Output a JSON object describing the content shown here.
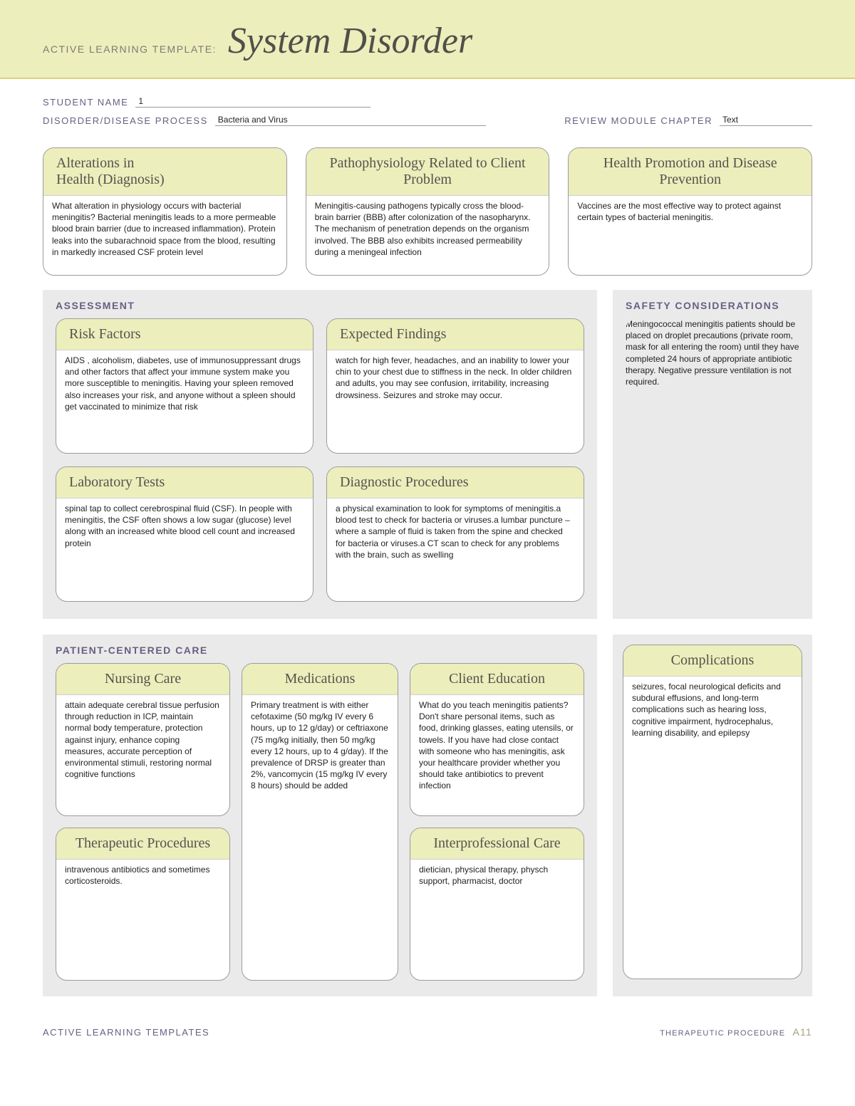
{
  "header": {
    "prefix": "ACTIVE LEARNING TEMPLATE:",
    "title": "System Disorder"
  },
  "meta": {
    "student_label": "STUDENT NAME",
    "student_value": "1",
    "disease_label": "DISORDER/DISEASE PROCESS",
    "disease_value": "Bacteria and Virus",
    "chapter_label": "REVIEW MODULE CHAPTER",
    "chapter_value": "Text"
  },
  "top": {
    "alterations": {
      "title": "Alterations in\nHealth (Diagnosis)",
      "body": "What alteration in physiology occurs with bacterial meningitis? Bacterial meningitis leads to a more permeable blood brain barrier (due to increased inflammation). Protein leaks into the subarachnoid space from the blood, resulting in markedly increased CSF protein level"
    },
    "patho": {
      "title": "Pathophysiology Related to Client Problem",
      "body": " Meningitis-causing pathogens typically cross the blood-brain barrier (BBB) after colonization of the nasopharynx. The mechanism of penetration depends on the organism involved. The BBB also exhibits increased permeability during a meningeal infection"
    },
    "health_promo": {
      "title": "Health Promotion and Disease Prevention",
      "body": "Vaccines are the most effective way to protect against certain types of bacterial meningitis."
    }
  },
  "assessment": {
    "title": "ASSESSMENT",
    "risk": {
      "title": "Risk Factors",
      "body": "AIDS , alcoholism, diabetes, use of immunosuppressant drugs and other factors that affect your immune system make you more susceptible to meningitis. Having your spleen removed also increases your risk, and anyone without a spleen should get vaccinated to minimize that risk"
    },
    "findings": {
      "title": "Expected Findings",
      "body": "watch for high fever, headaches, and an inability to lower your chin to your chest due to stiffness in the neck. In older children and adults, you may see confusion, irritability, increasing drowsiness. Seizures and stroke may occur."
    },
    "labs": {
      "title": "Laboratory Tests",
      "body": "spinal tap to collect cerebrospinal fluid (CSF). In people with meningitis, the CSF often shows a low sugar (glucose) level along with an increased white blood cell count and increased protein"
    },
    "diag": {
      "title": "Diagnostic Procedures",
      "body": "a physical examination to look for symptoms of meningitis.a blood test to check for bacteria or viruses.a lumbar puncture – where a sample of fluid is taken from the spine and checked for bacteria or viruses.a CT scan to check for any problems with the brain, such as swelling"
    }
  },
  "safety": {
    "title": "SAFETY CONSIDERATIONS",
    "body": "Meningococcal meningitis patients should be placed on droplet precautions (private room, mask for all entering the room) until they have completed 24 hours of appropriate antibiotic therapy. Negative pressure ventilation is not required."
  },
  "pcare": {
    "title": "PATIENT-CENTERED CARE",
    "nursing": {
      "title": "Nursing Care",
      "body": "attain adequate cerebral tissue perfusion through reduction in ICP, maintain normal body temperature, protection against injury, enhance coping measures, accurate perception of environmental stimuli, restoring normal cognitive functions"
    },
    "therapeutic": {
      "title": "Therapeutic Procedures",
      "body": "intravenous antibiotics and sometimes corticosteroids."
    },
    "meds": {
      "title": "Medications",
      "body": "Primary treatment is with either cefotaxime (50 mg/kg IV every 6 hours, up to 12 g/day) or ceftriaxone (75 mg/kg initially, then 50 mg/kg every 12 hours, up to 4 g/day). If the prevalence of DRSP is greater than 2%, vancomycin (15 mg/kg IV every 8 hours) should be added"
    },
    "education": {
      "title": "Client Education",
      "body": "What do you teach meningitis patients? Don't share personal items, such as food, drinking glasses, eating utensils, or towels. If you have had close contact with someone who has meningitis, ask your healthcare provider whether you should take antibiotics to prevent infection"
    },
    "interprof": {
      "title": "Interprofessional Care",
      "body": "dietician, physical therapy, physch support, pharmacist, doctor"
    }
  },
  "complications": {
    "title": "Complications",
    "body": "seizures, focal neurological deficits and subdural effusions, and  long-term complications such as hearing loss, cognitive impairment, hydrocephalus, learning disability, and epilepsy"
  },
  "footer": {
    "left": "ACTIVE LEARNING TEMPLATES",
    "right": "THERAPEUTIC PROCEDURE",
    "page": "A11"
  }
}
